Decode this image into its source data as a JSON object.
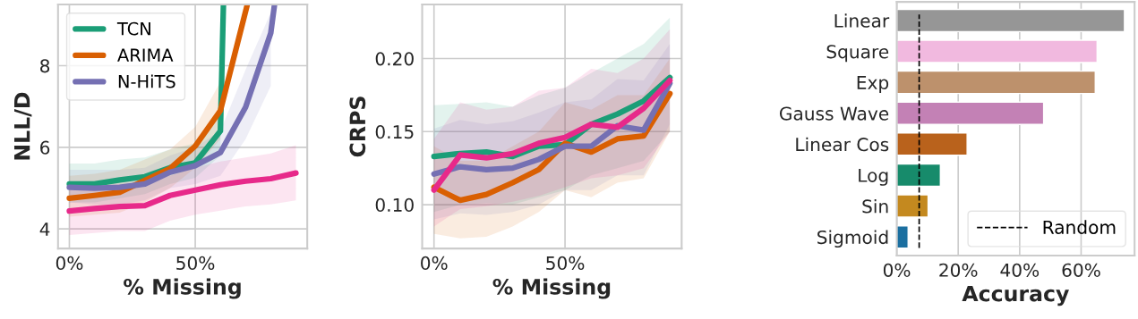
{
  "chart_data": [
    {
      "type": "line",
      "xlabel": "% Missing",
      "ylabel": "NLL/D",
      "xlim": [
        -4.5,
        94.5
      ],
      "xticks": [
        {
          "value": 0,
          "label": "0%"
        },
        {
          "value": 50,
          "label": "50%"
        }
      ],
      "ylim": [
        3.52,
        9.5
      ],
      "yticks": [
        4,
        6,
        8
      ],
      "grid": true,
      "legend": "top left",
      "series": [
        {
          "name": "TCN",
          "color": "#1b9e77",
          "x": [
            0,
            10,
            20,
            30,
            40,
            50,
            60,
            61.2
          ],
          "values": [
            5.1,
            5.1,
            5.2,
            5.28,
            5.5,
            5.62,
            6.4,
            9.5
          ],
          "lower": [
            4.65,
            4.65,
            4.75,
            4.85,
            5.1,
            5.25,
            5.8,
            null
          ],
          "upper": [
            5.6,
            5.6,
            5.7,
            5.75,
            5.95,
            6.1,
            7.0,
            null
          ]
        },
        {
          "name": "ARIMA",
          "color": "#d95f02",
          "x": [
            0,
            10,
            20,
            30,
            40,
            50,
            60,
            70.7
          ],
          "values": [
            4.75,
            4.82,
            4.9,
            5.19,
            5.48,
            6.03,
            6.9,
            9.5
          ],
          "lower": [
            4.3,
            4.35,
            4.4,
            4.65,
            5.0,
            5.5,
            6.2,
            null
          ],
          "upper": [
            5.3,
            5.35,
            5.45,
            5.7,
            5.95,
            6.5,
            7.6,
            null
          ]
        },
        {
          "name": "N-HiTS",
          "color": "#7570b3",
          "x": [
            0,
            10,
            20,
            30,
            40,
            50,
            60,
            70,
            80,
            81.5
          ],
          "values": [
            5.02,
            5.0,
            5.02,
            5.1,
            5.39,
            5.55,
            5.87,
            6.98,
            8.8,
            9.5
          ],
          "lower": [
            4.65,
            4.6,
            4.6,
            4.7,
            5.0,
            5.1,
            5.3,
            6.2,
            7.5,
            null
          ],
          "upper": [
            5.45,
            5.45,
            5.45,
            5.5,
            5.8,
            6.0,
            6.4,
            7.9,
            9.3,
            null
          ]
        },
        {
          "color": "#e7298a",
          "x": [
            0,
            10,
            20,
            30,
            40,
            50,
            60,
            70,
            80,
            90
          ],
          "values": [
            4.44,
            4.5,
            4.55,
            4.57,
            4.82,
            4.95,
            5.08,
            5.17,
            5.23,
            5.37
          ],
          "lower": [
            3.85,
            3.9,
            3.95,
            3.95,
            4.2,
            4.35,
            4.45,
            4.55,
            4.6,
            4.7
          ],
          "upper": [
            5.0,
            5.05,
            5.1,
            5.15,
            5.3,
            5.5,
            5.65,
            5.75,
            5.85,
            6.05
          ]
        }
      ]
    },
    {
      "type": "line",
      "xlabel": "% Missing",
      "ylabel": "CRPS",
      "xlim": [
        -4.5,
        94.5
      ],
      "xticks": [
        {
          "value": 0,
          "label": "0%"
        },
        {
          "value": 50,
          "label": "50%"
        }
      ],
      "ylim": [
        0.07,
        0.237
      ],
      "yticks": [
        {
          "value": 0.1,
          "label": "0.10"
        },
        {
          "value": 0.15,
          "label": "0.15"
        },
        {
          "value": 0.2,
          "label": "0.20"
        }
      ],
      "grid": true,
      "series": [
        {
          "color": "#1b9e77",
          "x": [
            0,
            10,
            20,
            30,
            40,
            50,
            60,
            70,
            80,
            90
          ],
          "values": [
            0.133,
            0.135,
            0.136,
            0.133,
            0.14,
            0.141,
            0.155,
            0.162,
            0.171,
            0.187
          ],
          "lower": [
            0.095,
            0.1,
            0.101,
            0.1,
            0.105,
            0.11,
            0.12,
            0.125,
            0.13,
            0.15
          ],
          "upper": [
            0.168,
            0.169,
            0.17,
            0.167,
            0.175,
            0.18,
            0.19,
            0.2,
            0.21,
            0.228
          ]
        },
        {
          "color": "#d95f02",
          "x": [
            0,
            10,
            20,
            30,
            40,
            50,
            60,
            70,
            80,
            90
          ],
          "values": [
            0.112,
            0.103,
            0.107,
            0.115,
            0.124,
            0.142,
            0.136,
            0.145,
            0.147,
            0.176
          ],
          "lower": [
            0.08,
            0.077,
            0.078,
            0.085,
            0.095,
            0.11,
            0.105,
            0.115,
            0.118,
            0.15
          ],
          "upper": [
            0.14,
            0.13,
            0.13,
            0.14,
            0.15,
            0.17,
            0.165,
            0.175,
            0.175,
            0.2
          ]
        },
        {
          "color": "#7570b3",
          "x": [
            0,
            10,
            20,
            30,
            40,
            50,
            60,
            70,
            80,
            90
          ],
          "values": [
            0.121,
            0.126,
            0.124,
            0.125,
            0.131,
            0.14,
            0.14,
            0.154,
            0.151,
            0.183
          ],
          "lower": [
            0.09,
            0.094,
            0.093,
            0.095,
            0.1,
            0.11,
            0.11,
            0.12,
            0.12,
            0.155
          ],
          "upper": [
            0.152,
            0.158,
            0.155,
            0.157,
            0.163,
            0.17,
            0.172,
            0.186,
            0.185,
            0.21
          ]
        },
        {
          "color": "#e7298a",
          "x": [
            0,
            10,
            20,
            30,
            40,
            50,
            60,
            70,
            80,
            90
          ],
          "values": [
            0.11,
            0.134,
            0.132,
            0.135,
            0.142,
            0.146,
            0.155,
            0.153,
            0.166,
            0.185
          ],
          "lower": [
            0.085,
            0.097,
            0.099,
            0.102,
            0.106,
            0.112,
            0.118,
            0.12,
            0.125,
            0.15
          ],
          "upper": [
            0.145,
            0.17,
            0.165,
            0.167,
            0.178,
            0.18,
            0.193,
            0.19,
            0.2,
            0.22
          ]
        }
      ]
    },
    {
      "type": "bar",
      "orientation": "horizontal",
      "xlabel": "Accuracy",
      "xlim": [
        0,
        77.4
      ],
      "xticks": [
        {
          "value": 0,
          "label": "0%"
        },
        {
          "value": 20,
          "label": "20%"
        },
        {
          "value": 40,
          "label": "40%"
        },
        {
          "value": 60,
          "label": "60%"
        }
      ],
      "grid": "x",
      "legend": "bottom right",
      "categories": [
        "Linear",
        "Square",
        "Exp",
        "Gauss Wave",
        "Linear Cos",
        "Log",
        "Sin",
        "Sigmoid"
      ],
      "values": [
        74.1,
        65.2,
        64.6,
        47.8,
        22.9,
        14.2,
        10.2,
        3.7
      ],
      "colors": [
        "#969696",
        "#f1b9df",
        "#bd916c",
        "#c381b5",
        "#b9621c",
        "#178b6b",
        "#c4891f",
        "#1b6fa0"
      ],
      "ref_lines": [
        {
          "axis": "x",
          "value": 7.3,
          "label": "Random",
          "line_style": "dashed",
          "color": "#000000"
        }
      ]
    }
  ]
}
